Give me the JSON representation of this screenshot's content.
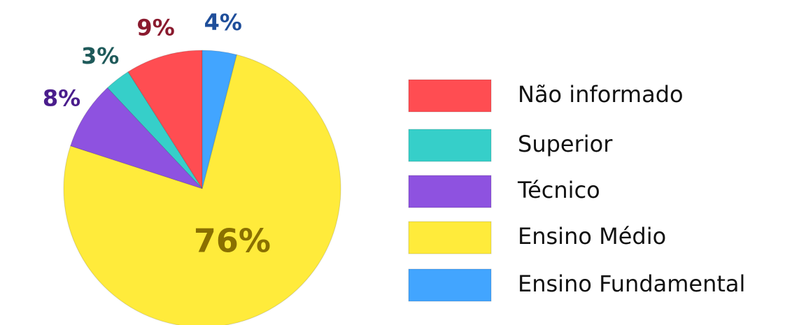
{
  "chart_data": {
    "type": "pie",
    "categories": [
      "Não informado",
      "Superior",
      "Técnico",
      "Ensino Médio",
      "Ensino Fundamental"
    ],
    "values": [
      9,
      3,
      8,
      76,
      4
    ],
    "value_labels": [
      "9%",
      "3%",
      "8%",
      "76%",
      "4%"
    ],
    "colors": [
      "#ff4d52",
      "#36cfc9",
      "#8e52e0",
      "#ffeb3b",
      "#42a5ff"
    ],
    "label_colors": [
      "#8a1a2e",
      "#1f5a5a",
      "#4a1d8c",
      "#8a7000",
      "#1f4e9a"
    ],
    "legend": "right"
  }
}
